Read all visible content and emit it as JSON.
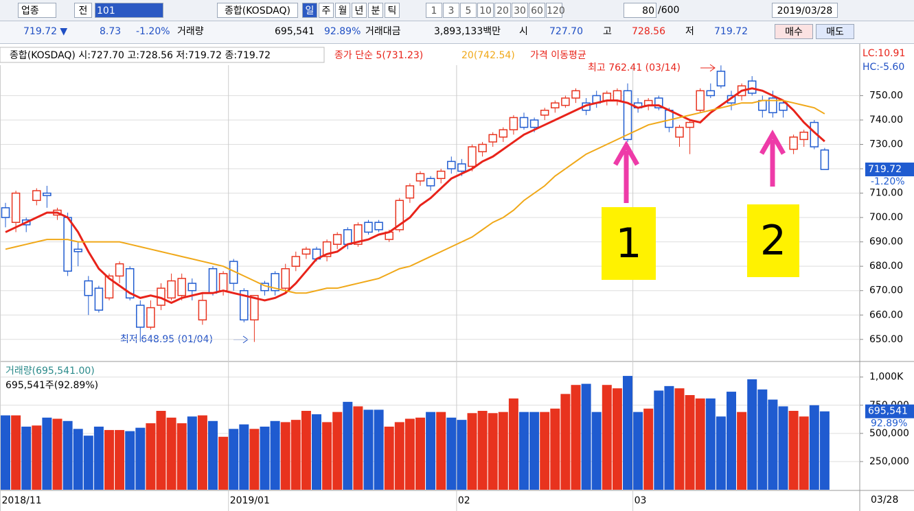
{
  "toolbar": {
    "market": "업종",
    "prev": "전",
    "code": "101",
    "name": "종합(KOSDAQ)",
    "periods": [
      "일",
      "주",
      "월",
      "년",
      "분",
      "틱"
    ],
    "intervals": [
      "1",
      "3",
      "5",
      "10",
      "20",
      "30",
      "60",
      "120"
    ],
    "count": "80",
    "total": "/600",
    "date": "2019/03/28"
  },
  "quote": {
    "price": "719.72 ▼",
    "change": "8.73",
    "rate": "-1.20%",
    "volume_label": "거래량",
    "volume": "695,541",
    "volume_rate": "92.89%",
    "amount_label": "거래대금",
    "amount": "3,893,133백만",
    "open_label": "시",
    "open": "727.70",
    "high_label": "고",
    "high": "728.56",
    "low_label": "저",
    "low": "719.72",
    "buy": "매수",
    "sell": "매도"
  },
  "chart_data": [
    {
      "type": "candlestick",
      "title": "종합(KOSDAQ) 시:727.70 고:728.56 저:719.72 종:719.72",
      "ma_title": "가격 이동평균",
      "lc": "LC:10.91",
      "hc": "HC:-5.60",
      "open": [
        704,
        698,
        699,
        707,
        710,
        701,
        700,
        687,
        674,
        671,
        667,
        676,
        679,
        664,
        655,
        664,
        667,
        668,
        673,
        658,
        679,
        670,
        682,
        670,
        658,
        673,
        677,
        671,
        680,
        685,
        687,
        684,
        689,
        695,
        689,
        698,
        698,
        691,
        695,
        708,
        715,
        716,
        716,
        723,
        722,
        721,
        727,
        731,
        733,
        736,
        741,
        740,
        742,
        745,
        746,
        749,
        747,
        750,
        748,
        748,
        752,
        747,
        746,
        749,
        744,
        733,
        737,
        744,
        752,
        760,
        750,
        750,
        756,
        748,
        749,
        747,
        728,
        732,
        739,
        727.7
      ],
      "high": [
        706,
        711,
        700,
        712,
        713,
        704,
        702,
        690,
        676,
        672,
        677,
        682,
        680,
        666,
        666,
        673,
        677,
        677,
        675,
        669,
        680,
        678,
        683,
        671,
        668,
        674,
        678,
        681,
        686,
        688,
        688,
        691,
        694,
        696,
        698,
        699,
        699,
        695,
        708,
        714,
        719,
        717,
        720,
        725,
        724,
        730,
        731,
        735,
        737,
        742,
        743,
        741,
        745,
        748,
        750,
        753,
        749,
        752,
        752,
        753,
        755,
        749,
        749,
        750,
        745,
        738,
        740,
        753,
        755,
        762.41,
        752,
        755,
        758,
        750,
        752,
        748,
        734,
        736,
        740,
        728.56
      ],
      "low": [
        696,
        694,
        694,
        705,
        704,
        699,
        676,
        680,
        660,
        661,
        666,
        673,
        666,
        649,
        654,
        662,
        666,
        666,
        666,
        656,
        668,
        668,
        670,
        657,
        648.95,
        668,
        668,
        669,
        678,
        683,
        682,
        682,
        687,
        687,
        688,
        693,
        694,
        690,
        694,
        706,
        713,
        711,
        714,
        718,
        717,
        719,
        725,
        729,
        731,
        734,
        736,
        735,
        740,
        743,
        745,
        747,
        742,
        745,
        746,
        746,
        731,
        743,
        744,
        744,
        735,
        729,
        726,
        743,
        749,
        753,
        744,
        748,
        750,
        741,
        741,
        741,
        726,
        729,
        728,
        719.72
      ],
      "close": [
        700,
        710,
        697,
        711,
        709,
        703,
        678,
        686,
        668,
        662,
        676,
        681,
        667,
        655,
        663,
        671,
        674,
        675,
        670,
        666,
        669,
        677,
        673,
        658,
        668,
        670,
        670,
        679,
        684,
        687,
        683,
        690,
        693,
        689,
        697,
        694,
        695,
        694,
        707,
        713,
        718,
        713,
        719,
        720,
        719,
        729,
        730,
        734,
        736,
        741,
        737,
        737,
        744,
        747,
        749,
        752,
        744,
        747,
        751,
        752,
        732,
        745,
        748,
        745,
        737,
        737,
        739,
        752,
        750,
        754,
        747,
        754,
        751,
        744,
        743,
        744,
        733,
        735,
        729,
        719.72
      ],
      "series": [
        {
          "name": "종가 단순 5(731.23)",
          "color": "#e8231a",
          "values": [
            694,
            696,
            698,
            700,
            702,
            702,
            700,
            694,
            686,
            679,
            675,
            672,
            669,
            667,
            668,
            667,
            665,
            667,
            668,
            669,
            669,
            670,
            669,
            668,
            667,
            666,
            667,
            669,
            673,
            678,
            683,
            685,
            686,
            689,
            690,
            691,
            693,
            694,
            697,
            700,
            705,
            708,
            712,
            716,
            718,
            720,
            723,
            725,
            728,
            731,
            734,
            736,
            738,
            740,
            742,
            744,
            746,
            747,
            748,
            748,
            747,
            745,
            746,
            746,
            744,
            742,
            740,
            739,
            743,
            746,
            749,
            752,
            753,
            752,
            750,
            748,
            744,
            739,
            735,
            731.23
          ]
        },
        {
          "name": "20(742.54)",
          "color": "#f0a818",
          "values": [
            687,
            688,
            689,
            690,
            691,
            691,
            691,
            690,
            690,
            690,
            690,
            690,
            689,
            688,
            687,
            686,
            685,
            684,
            683,
            682,
            681,
            680,
            678,
            676,
            674,
            672,
            671,
            670,
            669,
            669,
            670,
            671,
            671,
            672,
            673,
            674,
            675,
            677,
            679,
            680,
            682,
            684,
            686,
            688,
            690,
            692,
            695,
            698,
            700,
            703,
            707,
            710,
            713,
            717,
            720,
            723,
            726,
            728,
            730,
            732,
            734,
            736,
            738,
            739,
            740,
            741,
            742,
            743,
            744,
            745,
            746,
            747,
            747,
            748,
            748,
            748,
            747,
            746,
            745,
            742.54
          ]
        }
      ],
      "ylim": [
        641.5,
        762.5
      ],
      "yticks": [
        {
          "value": 650,
          "label": "650.00"
        },
        {
          "value": 660,
          "label": "660.00"
        },
        {
          "value": 670,
          "label": "670.00"
        },
        {
          "value": 680,
          "label": "680.00"
        },
        {
          "value": 690,
          "label": "690.00"
        },
        {
          "value": 700,
          "label": "700.00"
        },
        {
          "value": 710,
          "label": "710.00"
        },
        {
          "value": 720,
          "label": "720.00"
        },
        {
          "value": 730,
          "label": "730.00"
        },
        {
          "value": 740,
          "label": "740.00"
        },
        {
          "value": 750,
          "label": "750.00"
        }
      ],
      "last": {
        "value": 719.72,
        "label": "719.72"
      },
      "last_rate": "-1.20%",
      "xticks": [
        {
          "value": 0,
          "label": "2018/11"
        },
        {
          "value": 22,
          "label": "2019/01"
        },
        {
          "value": 44,
          "label": "02"
        },
        {
          "value": 61,
          "label": "03"
        }
      ],
      "end_label": "03/28",
      "annotations": [
        {
          "label": "최고 762.41 (03/14)"
        },
        {
          "label": "최저 648.95 (01/04)"
        },
        {
          "label": "1"
        },
        {
          "label": "2"
        }
      ],
      "grid": true
    },
    {
      "type": "bar",
      "title": "거래량(695,541.00)",
      "subtitle": "695,541주(92.89%)",
      "values": [
        660000,
        660000,
        560000,
        570000,
        640000,
        630000,
        610000,
        540000,
        480000,
        560000,
        530000,
        530000,
        520000,
        550000,
        590000,
        700000,
        640000,
        590000,
        650000,
        660000,
        610000,
        470000,
        540000,
        580000,
        540000,
        560000,
        610000,
        600000,
        620000,
        700000,
        670000,
        600000,
        690000,
        780000,
        740000,
        710000,
        710000,
        560000,
        600000,
        630000,
        640000,
        690000,
        690000,
        640000,
        620000,
        680000,
        700000,
        680000,
        690000,
        810000,
        690000,
        690000,
        690000,
        720000,
        850000,
        930000,
        940000,
        690000,
        930000,
        900000,
        1010000,
        690000,
        720000,
        880000,
        920000,
        900000,
        840000,
        810000,
        810000,
        650000,
        870000,
        690000,
        980000,
        890000,
        800000,
        740000,
        700000,
        650000,
        750000,
        695541
      ],
      "ylim": [
        0,
        1120000
      ],
      "yticks": [
        {
          "value": 250000,
          "label": "250,000"
        },
        {
          "value": 500000,
          "label": "500,000"
        },
        {
          "value": 750000,
          "label": "750,000"
        },
        {
          "value": 1000000,
          "label": "1,000K"
        }
      ],
      "last": {
        "value": 695541,
        "label": "695,541"
      },
      "last_rate": "92.89%"
    }
  ]
}
